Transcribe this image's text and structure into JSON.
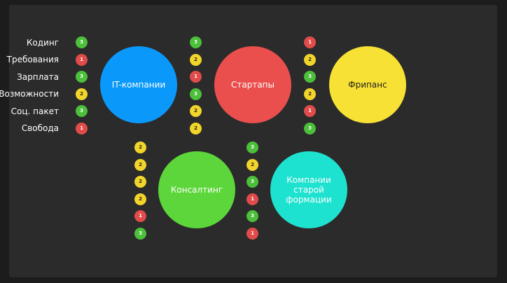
{
  "colors": {
    "score_3": "#4cbf3b",
    "score_2": "#f2d52a",
    "score_1": "#e14c4b"
  },
  "criteria": [
    "Кодинг",
    "Требования",
    "Зарплата",
    "Возможности",
    "Соц. пакет",
    "Свобода"
  ],
  "companies": [
    {
      "name": "IT-компании",
      "color": "#0a99fb",
      "text_color": "#ffffff",
      "scores": [
        3,
        1,
        3,
        2,
        3,
        1
      ]
    },
    {
      "name": "Стартапы",
      "color": "#ea4f4d",
      "text_color": "#ffffff",
      "scores": [
        3,
        2,
        1,
        3,
        2,
        2
      ]
    },
    {
      "name": "Фрипанс",
      "color": "#f7e134",
      "text_color": "#1f1f1f",
      "scores": [
        1,
        2,
        3,
        2,
        1,
        3
      ]
    },
    {
      "name": "Консалтинг",
      "color": "#5cd63a",
      "text_color": "#ffffff",
      "scores": [
        2,
        2,
        2,
        2,
        1,
        3
      ]
    },
    {
      "name": "Компании старой формации",
      "color": "#1de2cf",
      "text_color": "#ffffff",
      "scores": [
        3,
        2,
        3,
        1,
        3,
        1
      ]
    }
  ]
}
